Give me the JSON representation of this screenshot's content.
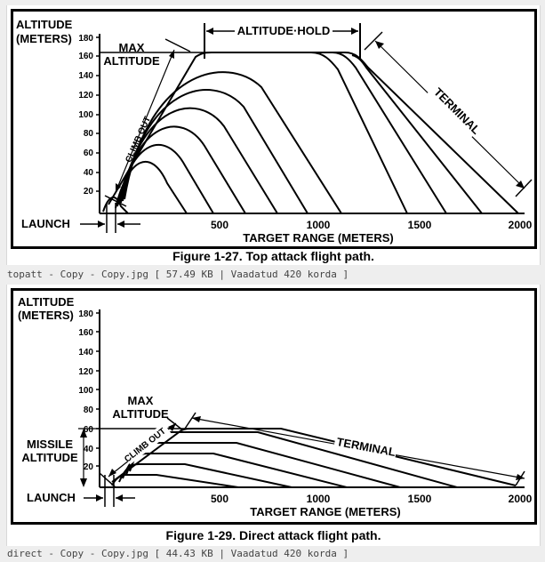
{
  "fig1": {
    "ylabel_line1": "ALTITUDE",
    "ylabel_line2": "(METERS)",
    "y_ticks": [
      "180",
      "160",
      "140",
      "120",
      "100",
      "80",
      "60",
      "40",
      "20"
    ],
    "x_ticks": [
      "500",
      "1000",
      "1500",
      "2000"
    ],
    "xlabel": "TARGET RANGE (METERS)",
    "max_alt_line1": "MAX",
    "max_alt_line2": "ALTITUDE",
    "altitude_hold": "ALTITUDE·HOLD",
    "climb_out": "CLIMB OUT",
    "terminal": "TERMINAL",
    "launch": "LAUNCH",
    "caption": "Figure 1-27. Top attack flight path."
  },
  "file1": "topatt - Copy - Copy.jpg [ 57.49 KB | Vaadatud 420 korda ]",
  "fig2": {
    "ylabel_line1": "ALTITUDE",
    "ylabel_line2": "(METERS)",
    "y_ticks": [
      "180",
      "160",
      "140",
      "120",
      "100",
      "80",
      "60",
      "40",
      "20"
    ],
    "x_ticks": [
      "500",
      "1000",
      "1500",
      "2000"
    ],
    "xlabel": "TARGET RANGE (METERS)",
    "max_alt_line1": "MAX",
    "max_alt_line2": "ALTITUDE",
    "missile_alt_line1": "MISSILE",
    "missile_alt_line2": "ALTITUDE",
    "climb_out": "CLIMB OUT",
    "terminal": "TERMINAL",
    "launch": "LAUNCH",
    "caption": "Figure 1-29. Direct attack flight path."
  },
  "file2": "direct - Copy - Copy.jpg [ 44.43 KB | Vaadatud 420 korda ]",
  "colors": {
    "ink": "#000000",
    "page_bg": "#eeeeee",
    "panel_bg": "#ffffff"
  }
}
